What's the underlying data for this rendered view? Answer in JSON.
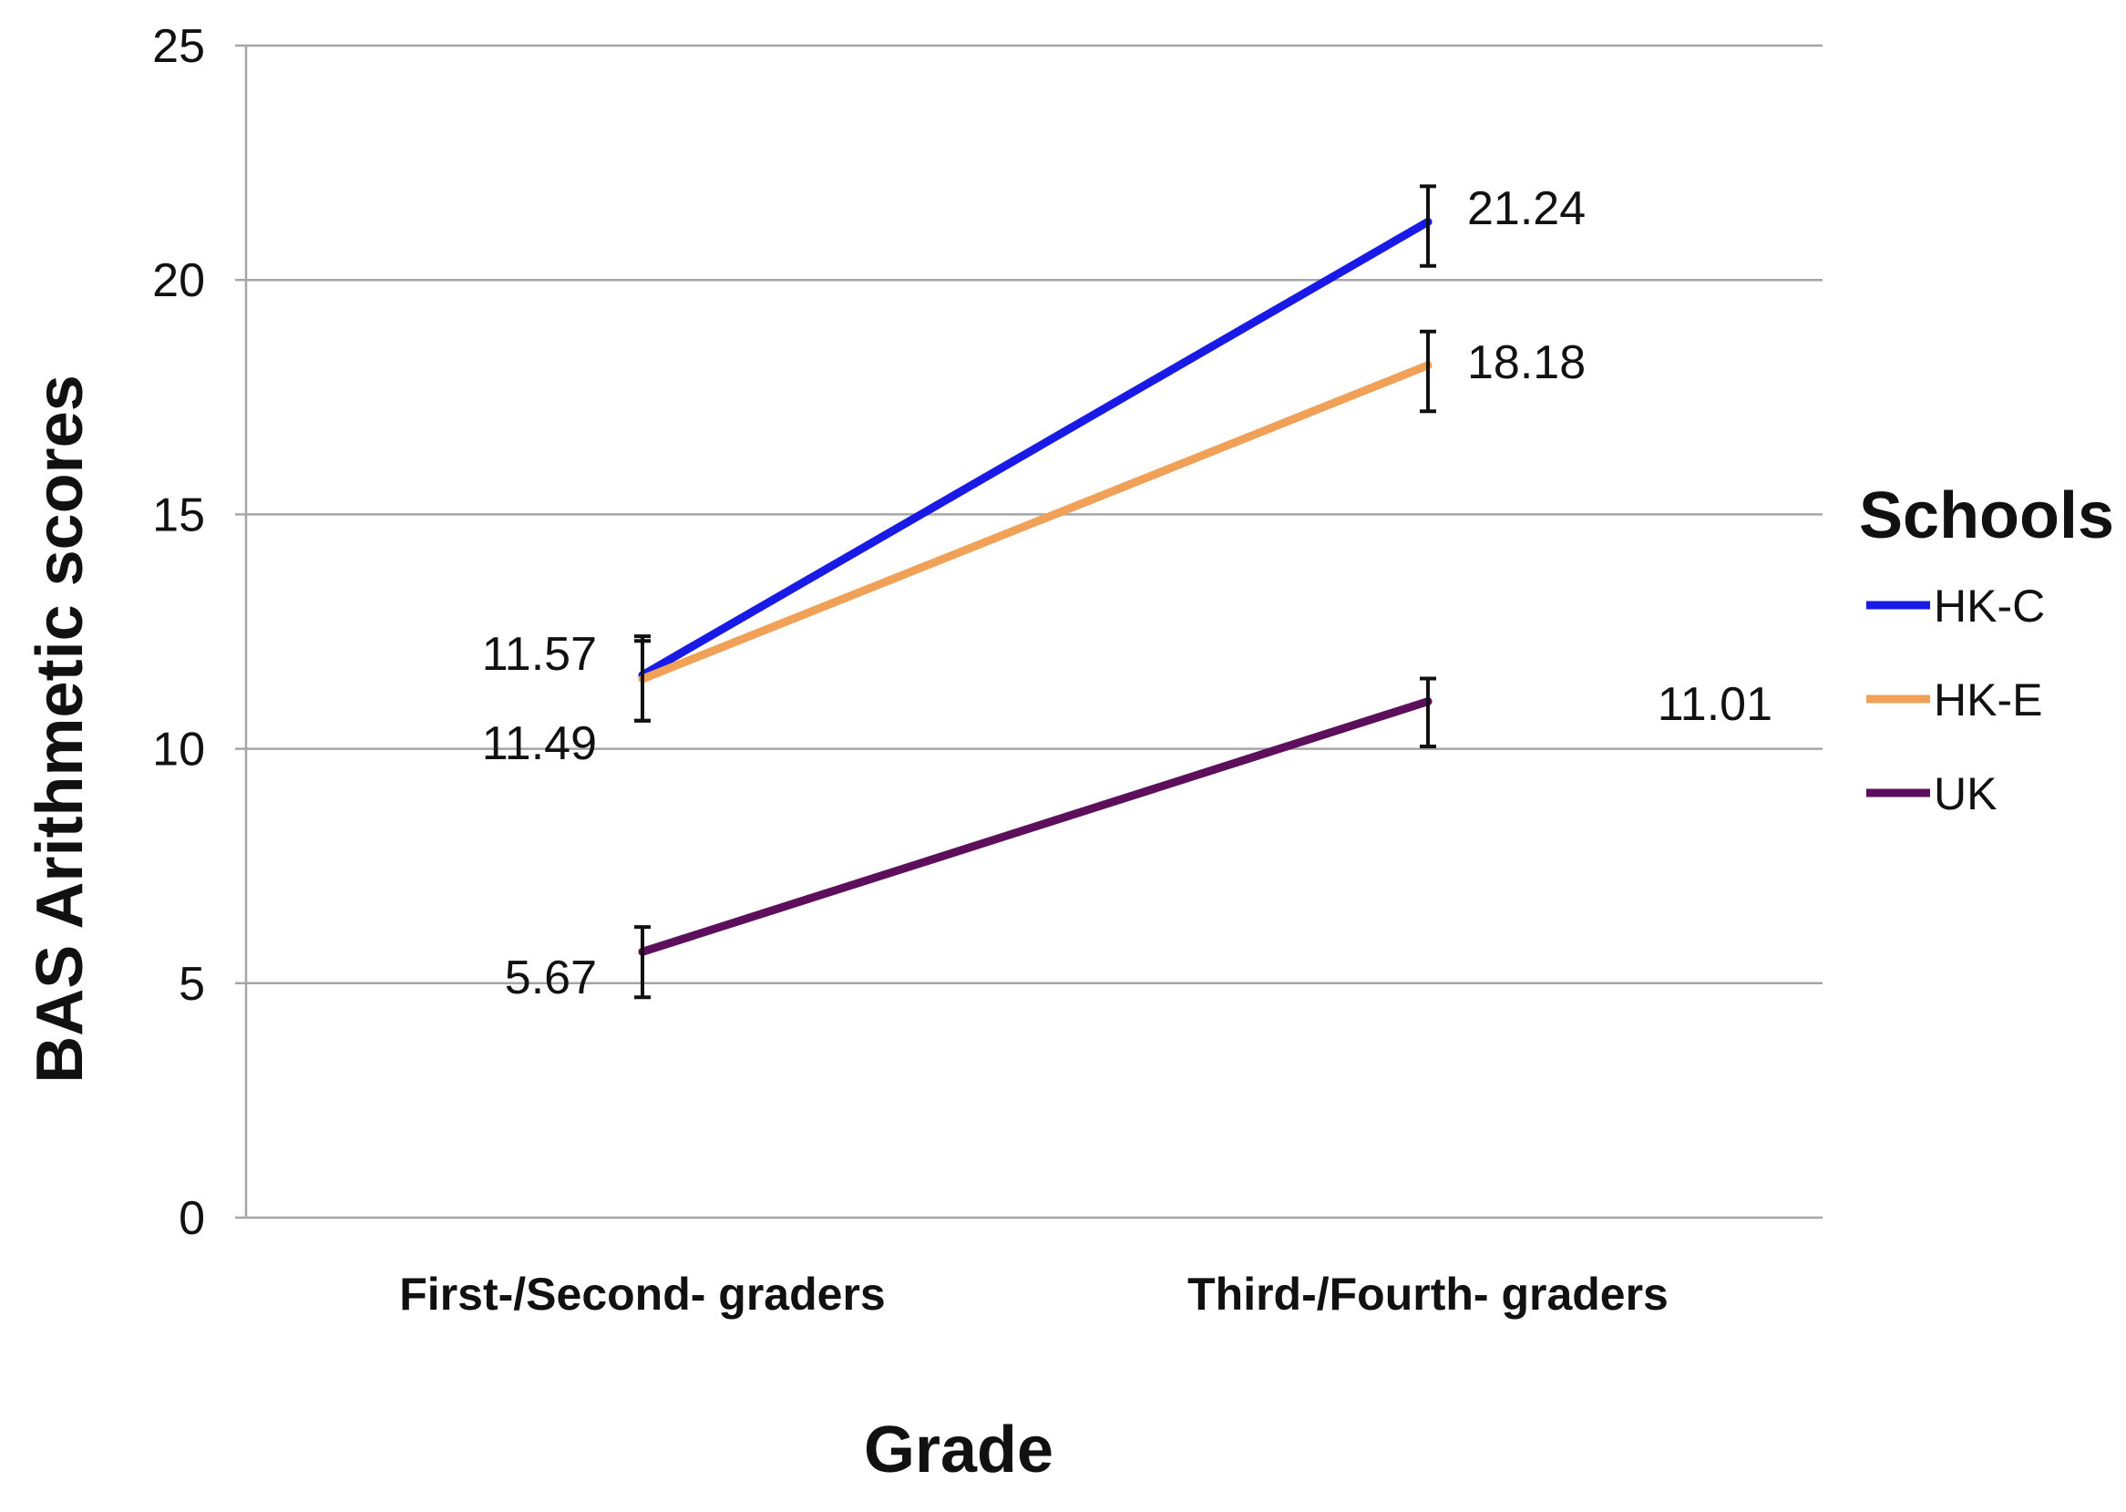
{
  "chart_data": {
    "type": "line",
    "xlabel": "Grade",
    "ylabel": "BAS Arithmetic scores",
    "ylim": [
      0,
      25
    ],
    "yticks": [
      0,
      5,
      10,
      15,
      20,
      25
    ],
    "grid": true,
    "categories": [
      "First-/Second- graders",
      "Third-/Fourth- graders"
    ],
    "legend": {
      "title": "Schools",
      "position": "right"
    },
    "series": [
      {
        "name": "HK-C",
        "color": "#1a1ae6",
        "values": [
          11.57,
          21.24
        ],
        "error": [
          [
            10.6,
            12.4
          ],
          [
            20.3,
            22.0
          ]
        ]
      },
      {
        "name": "HK-E",
        "color": "#f0a057",
        "values": [
          11.49,
          18.18
        ],
        "error": [
          [
            10.6,
            12.3
          ],
          [
            17.2,
            18.9
          ]
        ]
      },
      {
        "name": "UK",
        "color": "#5e0f5c",
        "values": [
          5.67,
          11.01
        ],
        "error": [
          [
            4.7,
            6.2
          ],
          [
            10.05,
            11.5
          ]
        ]
      }
    ],
    "data_labels": [
      {
        "text": "11.57",
        "series": "HK-C",
        "point": 0
      },
      {
        "text": "11.49",
        "series": "HK-E",
        "point": 0
      },
      {
        "text": "5.67",
        "series": "UK",
        "point": 0
      },
      {
        "text": "21.24",
        "series": "HK-C",
        "point": 1
      },
      {
        "text": "18.18",
        "series": "HK-E",
        "point": 1
      },
      {
        "text": "11.01",
        "series": "UK",
        "point": 1
      }
    ]
  }
}
